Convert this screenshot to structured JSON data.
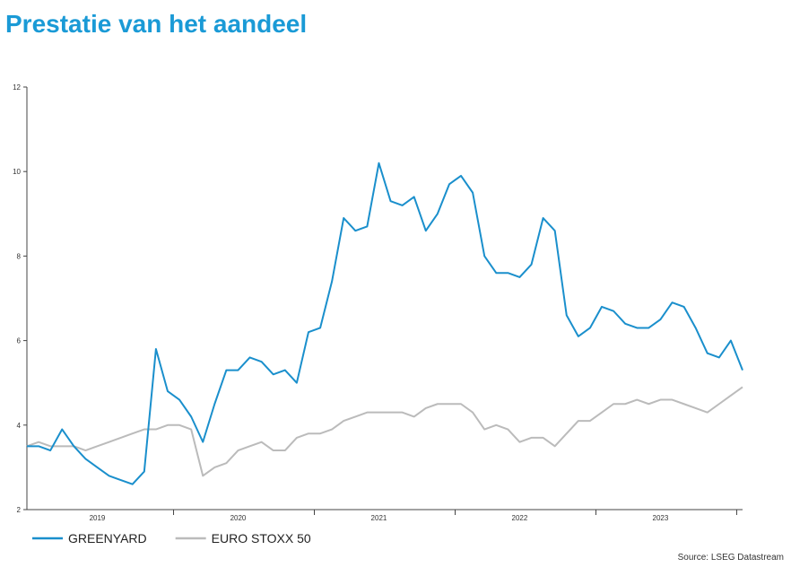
{
  "chart_data": {
    "type": "line",
    "title": "Prestatie van het aandeel",
    "source": "Source: LSEG Datastream",
    "categories": [
      null,
      null,
      null,
      null,
      null,
      null,
      "2019",
      null,
      null,
      null,
      null,
      null,
      null,
      null,
      null,
      null,
      null,
      null,
      "2020",
      null,
      null,
      null,
      null,
      null,
      null,
      null,
      null,
      null,
      null,
      null,
      "2021",
      null,
      null,
      null,
      null,
      null,
      null,
      null,
      null,
      null,
      null,
      null,
      "2022",
      null,
      null,
      null,
      null,
      null,
      null,
      null,
      null,
      null,
      null,
      null,
      "2023",
      null,
      null,
      null,
      null,
      null,
      null,
      null
    ],
    "series": [
      {
        "name": "GREENYARD",
        "color": "#1a8fcc",
        "values": [
          3.5,
          3.5,
          3.4,
          3.9,
          3.5,
          3.2,
          3.0,
          2.8,
          2.7,
          2.6,
          2.9,
          5.8,
          4.8,
          4.6,
          4.2,
          3.6,
          4.5,
          5.3,
          5.3,
          5.6,
          5.5,
          5.2,
          5.3,
          5.0,
          6.2,
          6.3,
          7.4,
          8.9,
          8.6,
          8.7,
          10.2,
          9.3,
          9.2,
          9.4,
          8.6,
          9.0,
          9.7,
          9.9,
          9.5,
          8.0,
          7.6,
          7.6,
          7.5,
          7.8,
          8.9,
          8.6,
          6.6,
          6.1,
          6.3,
          6.8,
          6.7,
          6.4,
          6.3,
          6.3,
          6.5,
          6.9,
          6.8,
          6.3,
          5.7,
          5.6,
          6.0,
          5.3
        ]
      },
      {
        "name": "EURO STOXX 50",
        "color": "#bbbbbb",
        "values": [
          3.5,
          3.6,
          3.5,
          3.5,
          3.5,
          3.4,
          3.5,
          3.6,
          3.7,
          3.8,
          3.9,
          3.9,
          4.0,
          4.0,
          3.9,
          2.8,
          3.0,
          3.1,
          3.4,
          3.5,
          3.6,
          3.4,
          3.4,
          3.7,
          3.8,
          3.8,
          3.9,
          4.1,
          4.2,
          4.3,
          4.3,
          4.3,
          4.3,
          4.2,
          4.4,
          4.5,
          4.5,
          4.5,
          4.3,
          3.9,
          4.0,
          3.9,
          3.6,
          3.7,
          3.7,
          3.5,
          3.8,
          4.1,
          4.1,
          4.3,
          4.5,
          4.5,
          4.6,
          4.5,
          4.6,
          4.6,
          4.5,
          4.4,
          4.3,
          4.5,
          4.7,
          4.9
        ]
      }
    ],
    "ylim": [
      2,
      12
    ],
    "yticks": [
      2,
      4,
      6,
      8,
      10,
      12
    ]
  }
}
